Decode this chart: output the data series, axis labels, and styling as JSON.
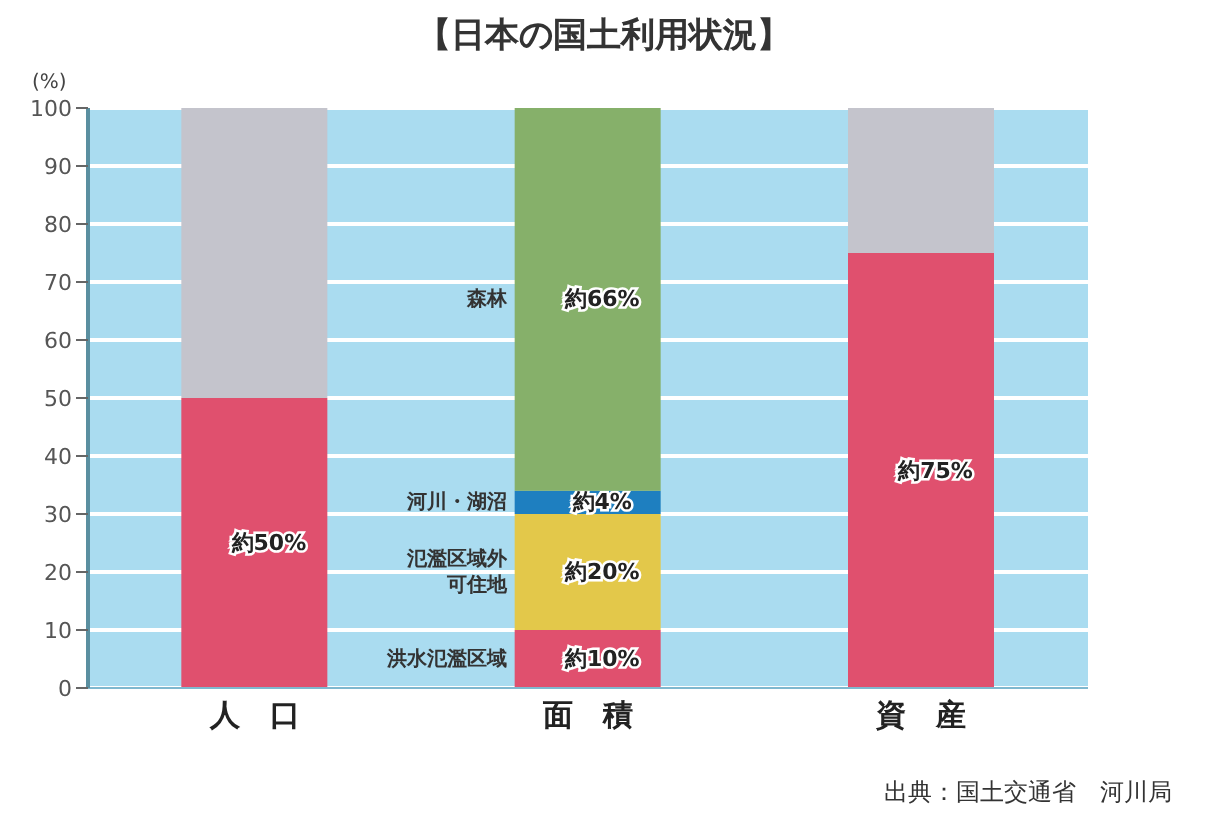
{
  "chart_data": {
    "type": "bar",
    "title": "【日本の国土利用状況】",
    "ylabel": "(%)",
    "categories": [
      "人　口",
      "面　積",
      "資　産"
    ],
    "stacked": true,
    "ylim": [
      0,
      100
    ],
    "yticks": [
      0,
      10,
      20,
      30,
      40,
      50,
      60,
      70,
      80,
      90,
      100
    ],
    "grid": "y",
    "legend": false,
    "series": [
      {
        "color": "#e0506e",
        "values": [
          50,
          null,
          75
        ],
        "value_labels": [
          "約50%",
          null,
          "約75%"
        ]
      },
      {
        "name": "洪水氾濫区域",
        "color": "#e0506e",
        "values": [
          null,
          10,
          null
        ],
        "value_labels": [
          null,
          "約10%",
          null
        ]
      },
      {
        "name": "氾濫区域外可住地",
        "color": "#e3c84a",
        "values": [
          null,
          20,
          null
        ],
        "value_labels": [
          null,
          "約20%",
          null
        ]
      },
      {
        "name": "河川・湖沼",
        "color": "#1e7fc0",
        "values": [
          null,
          4,
          null
        ],
        "value_labels": [
          null,
          "約4%",
          null
        ]
      },
      {
        "name": "森林",
        "color": "#86b06a",
        "values": [
          null,
          66,
          null
        ],
        "value_labels": [
          null,
          "約66%",
          null
        ]
      },
      {
        "color": "#c4c4cc",
        "values": [
          50,
          null,
          25
        ]
      }
    ],
    "annotations": [
      "出典：国土交通省　河川局"
    ]
  }
}
